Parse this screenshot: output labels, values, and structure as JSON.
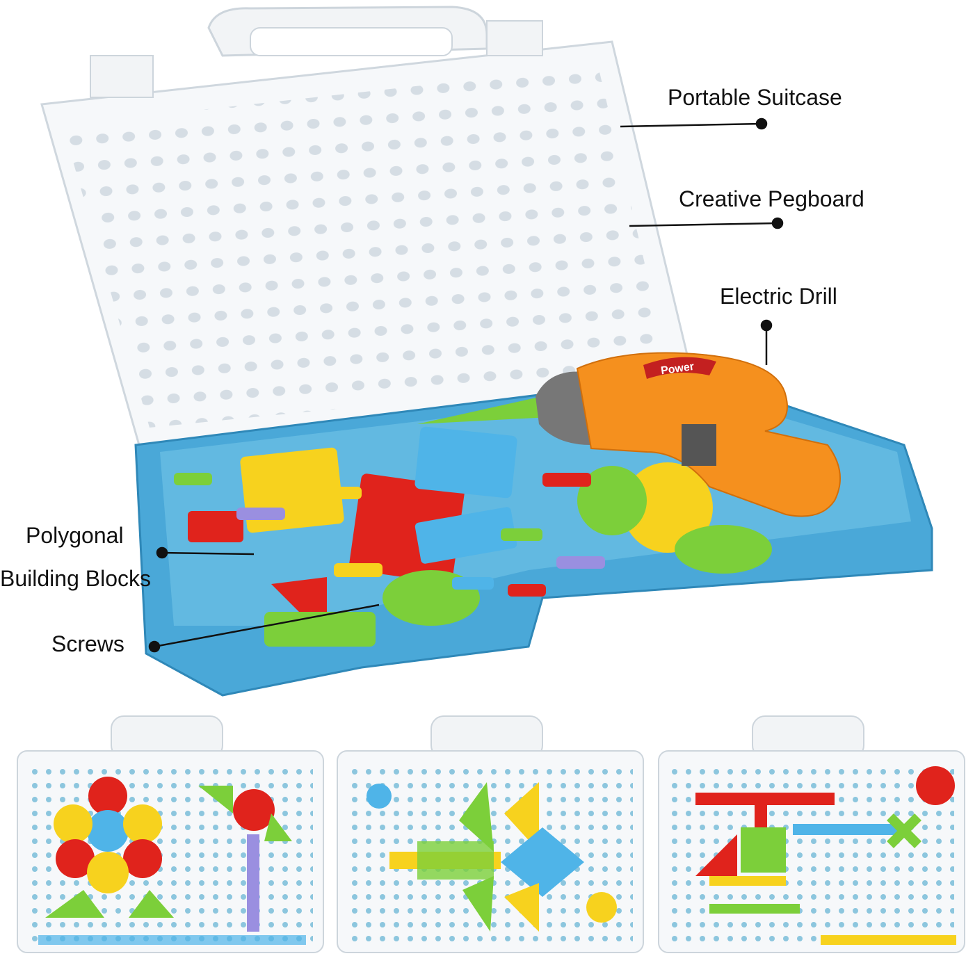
{
  "labels": {
    "portable_suitcase": "Portable Suitcase",
    "creative_pegboard": "Creative Pegboard",
    "electric_drill": "Electric Drill",
    "polygonal_line1": "Polygonal",
    "polygonal_line2": "Building Blocks",
    "screws": "Screws"
  },
  "drill_logo": "Power",
  "colors": {
    "suitcase": "#f4f6f8",
    "tray": "#4aa8d8",
    "drill": "#f5901e",
    "red": "#e0231c",
    "yellow": "#f7d21e",
    "green": "#7ccf3a",
    "blue": "#4fb4e8",
    "purple": "#9a8fe0"
  },
  "example_boards": [
    "flower-and-windmill",
    "airplane",
    "helicopter"
  ]
}
